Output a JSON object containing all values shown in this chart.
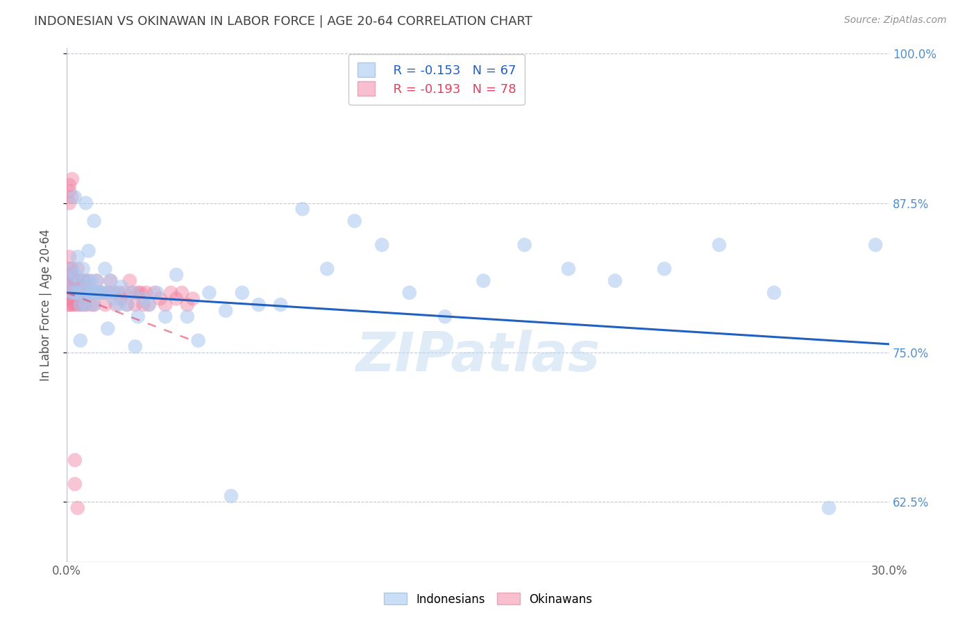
{
  "title": "INDONESIAN VS OKINAWAN IN LABOR FORCE | AGE 20-64 CORRELATION CHART",
  "source": "Source: ZipAtlas.com",
  "ylabel": "In Labor Force | Age 20-64",
  "xlim": [
    0.0,
    0.3
  ],
  "ylim": [
    0.575,
    1.005
  ],
  "yticks": [
    0.625,
    0.75,
    0.875,
    1.0
  ],
  "ytick_labels": [
    "62.5%",
    "75.0%",
    "87.5%",
    "100.0%"
  ],
  "xticks": [
    0.0,
    0.05,
    0.1,
    0.15,
    0.2,
    0.25,
    0.3
  ],
  "xtick_labels": [
    "0.0%",
    "",
    "",
    "",
    "",
    "",
    "30.0%"
  ],
  "legend_r_blue": "R = -0.153",
  "legend_n_blue": "N = 67",
  "legend_r_pink": "R = -0.193",
  "legend_n_pink": "N = 78",
  "blue_color": "#A8C8F0",
  "pink_color": "#F080A0",
  "blue_line_color": "#2060C0",
  "pink_line_color": "#E04060",
  "title_color": "#404040",
  "axis_label_color": "#505050",
  "tick_color_right": "#5090D0",
  "watermark_color": "#C0D8F0",
  "background_color": "#FFFFFF",
  "indonesians_x": [
    0.001,
    0.002,
    0.002,
    0.003,
    0.003,
    0.004,
    0.004,
    0.005,
    0.005,
    0.006,
    0.006,
    0.007,
    0.007,
    0.008,
    0.008,
    0.009,
    0.009,
    0.01,
    0.01,
    0.011,
    0.011,
    0.012,
    0.013,
    0.014,
    0.015,
    0.016,
    0.017,
    0.018,
    0.019,
    0.02,
    0.022,
    0.024,
    0.026,
    0.028,
    0.03,
    0.033,
    0.036,
    0.04,
    0.044,
    0.048,
    0.052,
    0.058,
    0.064,
    0.07,
    0.078,
    0.086,
    0.095,
    0.105,
    0.115,
    0.125,
    0.138,
    0.152,
    0.167,
    0.183,
    0.2,
    0.218,
    0.238,
    0.258,
    0.278,
    0.295,
    0.003,
    0.005,
    0.007,
    0.01,
    0.015,
    0.025,
    0.06
  ],
  "indonesians_y": [
    0.81,
    0.82,
    0.8,
    0.815,
    0.8,
    0.83,
    0.8,
    0.79,
    0.81,
    0.8,
    0.82,
    0.81,
    0.79,
    0.835,
    0.8,
    0.8,
    0.81,
    0.8,
    0.79,
    0.8,
    0.81,
    0.8,
    0.8,
    0.82,
    0.8,
    0.81,
    0.795,
    0.8,
    0.79,
    0.805,
    0.79,
    0.8,
    0.78,
    0.795,
    0.79,
    0.8,
    0.78,
    0.815,
    0.78,
    0.76,
    0.8,
    0.785,
    0.8,
    0.79,
    0.79,
    0.87,
    0.82,
    0.86,
    0.84,
    0.8,
    0.78,
    0.81,
    0.84,
    0.82,
    0.81,
    0.82,
    0.84,
    0.8,
    0.62,
    0.84,
    0.88,
    0.76,
    0.875,
    0.86,
    0.77,
    0.755,
    0.63
  ],
  "okinawans_x": [
    0.001,
    0.001,
    0.001,
    0.001,
    0.001,
    0.001,
    0.001,
    0.001,
    0.001,
    0.001,
    0.001,
    0.002,
    0.002,
    0.002,
    0.002,
    0.002,
    0.002,
    0.002,
    0.003,
    0.003,
    0.003,
    0.003,
    0.004,
    0.004,
    0.004,
    0.004,
    0.005,
    0.005,
    0.005,
    0.006,
    0.006,
    0.006,
    0.007,
    0.007,
    0.007,
    0.008,
    0.008,
    0.009,
    0.009,
    0.01,
    0.01,
    0.011,
    0.011,
    0.012,
    0.013,
    0.014,
    0.015,
    0.016,
    0.017,
    0.018,
    0.019,
    0.02,
    0.021,
    0.022,
    0.023,
    0.024,
    0.025,
    0.026,
    0.027,
    0.028,
    0.029,
    0.03,
    0.032,
    0.034,
    0.036,
    0.038,
    0.04,
    0.042,
    0.044,
    0.046,
    0.001,
    0.001,
    0.001,
    0.002,
    0.002,
    0.003,
    0.003,
    0.004
  ],
  "okinawans_y": [
    0.8,
    0.81,
    0.82,
    0.79,
    0.8,
    0.815,
    0.795,
    0.83,
    0.8,
    0.79,
    0.81,
    0.8,
    0.81,
    0.82,
    0.79,
    0.8,
    0.815,
    0.805,
    0.8,
    0.81,
    0.79,
    0.8,
    0.8,
    0.82,
    0.81,
    0.79,
    0.8,
    0.81,
    0.79,
    0.8,
    0.81,
    0.79,
    0.8,
    0.81,
    0.79,
    0.8,
    0.81,
    0.8,
    0.79,
    0.8,
    0.79,
    0.8,
    0.81,
    0.8,
    0.8,
    0.79,
    0.8,
    0.81,
    0.8,
    0.79,
    0.8,
    0.795,
    0.8,
    0.79,
    0.81,
    0.8,
    0.79,
    0.8,
    0.8,
    0.79,
    0.8,
    0.79,
    0.8,
    0.795,
    0.79,
    0.8,
    0.795,
    0.8,
    0.79,
    0.795,
    0.89,
    0.875,
    0.885,
    0.895,
    0.88,
    0.66,
    0.64,
    0.62
  ],
  "blue_trend_x": [
    0.0,
    0.3
  ],
  "blue_trend_y": [
    0.8,
    0.757
  ],
  "pink_trend_x": [
    0.0,
    0.046
  ],
  "pink_trend_y": [
    0.8,
    0.76
  ]
}
